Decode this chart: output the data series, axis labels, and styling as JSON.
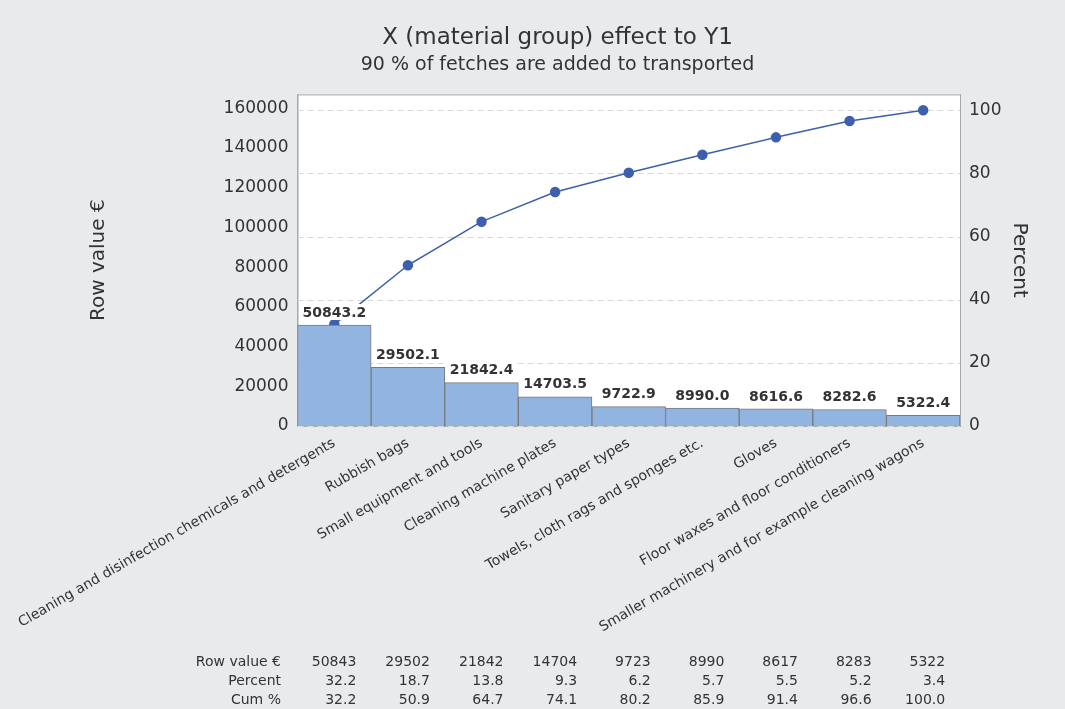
{
  "chart_data": {
    "type": "bar",
    "title": "X (material group) effect to Y1",
    "subtitle": "90 % of fetches are added to transported",
    "ylabel": "Row value €",
    "y2label": "Percent",
    "categories": [
      "Cleaning and disinfection chemicals and detergents",
      "Rubbish bags",
      "Small equipment and tools",
      "Cleaning machine plates",
      "Sanitary paper types",
      "Towels, cloth rags and sponges etc.",
      "Gloves",
      "Floor waxes and floor conditioners",
      "Smaller machinery and for example cleaning wagons"
    ],
    "series": [
      {
        "color": "#92b4e0",
        "values": [
          50843.2,
          29502.1,
          21842.4,
          14703.5,
          9722.9,
          8990.0,
          8616.6,
          8282.6,
          5322.4
        ],
        "value_labels": [
          "50843.2",
          "29502.1",
          "21842.4",
          "14703.5",
          "9722.9",
          "8990.0",
          "8616.6",
          "8282.6",
          "5322.4"
        ]
      },
      {
        "type": "line",
        "axis": "y2",
        "color": "#3d5fae",
        "values": [
          32.2,
          50.9,
          64.7,
          74.1,
          80.2,
          85.9,
          91.4,
          96.6,
          100.0
        ]
      }
    ],
    "ylim": [
      0,
      167000
    ],
    "yticks": [
      0,
      20000,
      40000,
      60000,
      80000,
      100000,
      120000,
      140000,
      160000
    ],
    "y2lim": [
      0,
      105
    ],
    "y2ticks": [
      0,
      20,
      40,
      60,
      80,
      100
    ],
    "grid": "y",
    "legend": false,
    "marker": "circle",
    "line_style": "solid",
    "annotations": [
      "Row value €",
      "50843",
      "29502",
      "21842",
      "14704",
      "9723",
      "8990",
      "8617",
      "8283",
      "5322",
      "Percent",
      "32.2",
      "18.7",
      "13.8",
      "9.3",
      "6.2",
      "5.7",
      "5.5",
      "5.2",
      "3.4",
      "Cum %",
      "32.2",
      "50.9",
      "64.7",
      "74.1",
      "80.2",
      "85.9",
      "91.4",
      "96.6",
      "100.0"
    ]
  }
}
